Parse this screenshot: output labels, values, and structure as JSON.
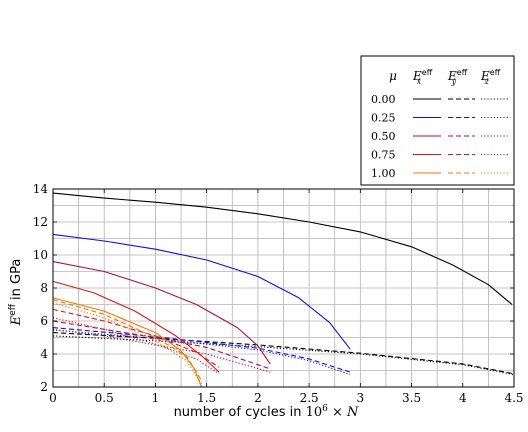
{
  "chart_data": {
    "type": "line",
    "xlabel_prefix": "number of cycles in ",
    "xlabel_math": "10",
    "xlabel_exp": "6",
    "xlabel_suffix": " × N",
    "ylabel_base": "E",
    "ylabel_sup": "eff",
    "ylabel_suffix": " in GPa",
    "xlim": [
      0,
      4.5
    ],
    "ylim": [
      2,
      14
    ],
    "xticks": [
      0,
      0.5,
      1,
      1.5,
      2,
      2.5,
      3,
      3.5,
      4,
      4.5
    ],
    "xtick_labels": [
      "0",
      "0.5",
      "1",
      "1.5",
      "2",
      "2.5",
      "3",
      "3.5",
      "4",
      "4.5"
    ],
    "yticks": [
      2,
      4,
      6,
      8,
      10,
      12,
      14
    ],
    "ytick_labels": [
      "2",
      "4",
      "6",
      "8",
      "10",
      "12",
      "14"
    ],
    "grid": true,
    "legend": {
      "placement": "top-right",
      "mu_header": "μ",
      "col_headers": [
        {
          "base": "E",
          "sub": "x",
          "sup": "eff"
        },
        {
          "base": "E",
          "sub": "y",
          "sup": "eff"
        },
        {
          "base": "E",
          "sub": "z",
          "sup": "eff"
        }
      ],
      "rows": [
        {
          "mu": "0.00",
          "color": "#000000"
        },
        {
          "mu": "0.25",
          "color": "#1010e8"
        },
        {
          "mu": "0.50",
          "color": "#b0123e"
        },
        {
          "mu": "0.75",
          "color": "#e01818"
        },
        {
          "mu": "1.00",
          "color": "#f07800"
        }
      ]
    },
    "series": [
      {
        "mu": "0.00",
        "component": "x",
        "style": "solid",
        "color": "#000000",
        "x": [
          0,
          0.5,
          1,
          1.5,
          2,
          2.5,
          3,
          3.5,
          3.9,
          4.25,
          4.48
        ],
        "y": [
          13.75,
          13.45,
          13.2,
          12.9,
          12.5,
          12.0,
          11.4,
          10.5,
          9.4,
          8.2,
          7.0
        ]
      },
      {
        "mu": "0.00",
        "component": "y",
        "style": "dashed",
        "color": "#000000",
        "x": [
          0,
          1,
          2,
          3,
          4,
          4.5
        ],
        "y": [
          5.3,
          4.95,
          4.55,
          4.05,
          3.4,
          2.8
        ]
      },
      {
        "mu": "0.00",
        "component": "z",
        "style": "dotted",
        "color": "#000000",
        "x": [
          0,
          1,
          2,
          3,
          4,
          4.5
        ],
        "y": [
          5.1,
          4.8,
          4.45,
          4.0,
          3.35,
          2.75
        ]
      },
      {
        "mu": "0.25",
        "component": "x",
        "style": "solid",
        "color": "#1010e8",
        "x": [
          0,
          0.5,
          1,
          1.5,
          2,
          2.4,
          2.7,
          2.9
        ],
        "y": [
          11.25,
          10.85,
          10.35,
          9.7,
          8.7,
          7.4,
          5.9,
          4.3
        ]
      },
      {
        "mu": "0.25",
        "component": "y",
        "style": "dashed",
        "color": "#1010e8",
        "x": [
          0,
          1,
          2,
          2.5,
          2.9
        ],
        "y": [
          5.6,
          5.05,
          4.35,
          3.7,
          2.9
        ]
      },
      {
        "mu": "0.25",
        "component": "z",
        "style": "dotted",
        "color": "#1010e8",
        "x": [
          0,
          1,
          2,
          2.5,
          2.9
        ],
        "y": [
          5.45,
          4.95,
          4.25,
          3.6,
          2.75
        ]
      },
      {
        "mu": "0.50",
        "component": "x",
        "style": "solid",
        "color": "#b0123e",
        "x": [
          0,
          0.5,
          1,
          1.4,
          1.8,
          2.0,
          2.12
        ],
        "y": [
          9.6,
          9.0,
          8.0,
          7.0,
          5.6,
          4.5,
          3.4
        ]
      },
      {
        "mu": "0.50",
        "component": "y",
        "style": "dashed",
        "color": "#b0123e",
        "x": [
          0,
          0.5,
          1,
          1.5,
          2.12
        ],
        "y": [
          6.0,
          5.5,
          5.0,
          4.4,
          3.1
        ]
      },
      {
        "mu": "0.50",
        "component": "z",
        "style": "dotted",
        "color": "#b0123e",
        "x": [
          0,
          0.5,
          1,
          1.5,
          2.12
        ],
        "y": [
          5.5,
          5.1,
          4.55,
          4.0,
          2.9
        ]
      },
      {
        "mu": "0.75",
        "component": "x",
        "style": "solid",
        "color": "#e01818",
        "x": [
          0,
          0.4,
          0.8,
          1.2,
          1.45,
          1.62
        ],
        "y": [
          8.4,
          7.7,
          6.6,
          5.1,
          3.9,
          2.9
        ]
      },
      {
        "mu": "0.75",
        "component": "y",
        "style": "dashed",
        "color": "#e01818",
        "x": [
          0,
          0.5,
          1,
          1.4,
          1.62
        ],
        "y": [
          6.7,
          6.0,
          5.1,
          4.1,
          3.2
        ]
      },
      {
        "mu": "0.75",
        "component": "z",
        "style": "dotted",
        "color": "#e01818",
        "x": [
          0,
          0.5,
          1,
          1.4,
          1.62
        ],
        "y": [
          6.2,
          5.5,
          4.6,
          3.7,
          2.8
        ]
      },
      {
        "mu": "1.00",
        "component": "x",
        "style": "solid",
        "color": "#f07800",
        "x": [
          0,
          0.5,
          1,
          1.25,
          1.38,
          1.45
        ],
        "y": [
          7.4,
          6.6,
          5.3,
          4.2,
          3.1,
          2.0
        ]
      },
      {
        "mu": "1.00",
        "component": "y",
        "style": "dashed",
        "color": "#f07800",
        "x": [
          0,
          0.5,
          1,
          1.3,
          1.45
        ],
        "y": [
          7.3,
          6.4,
          5.0,
          3.9,
          2.4
        ]
      },
      {
        "mu": "1.00",
        "component": "z",
        "style": "dotted",
        "color": "#f07800",
        "x": [
          0,
          0.5,
          1,
          1.3,
          1.45
        ],
        "y": [
          7.1,
          6.2,
          4.8,
          3.6,
          2.2
        ]
      }
    ]
  }
}
